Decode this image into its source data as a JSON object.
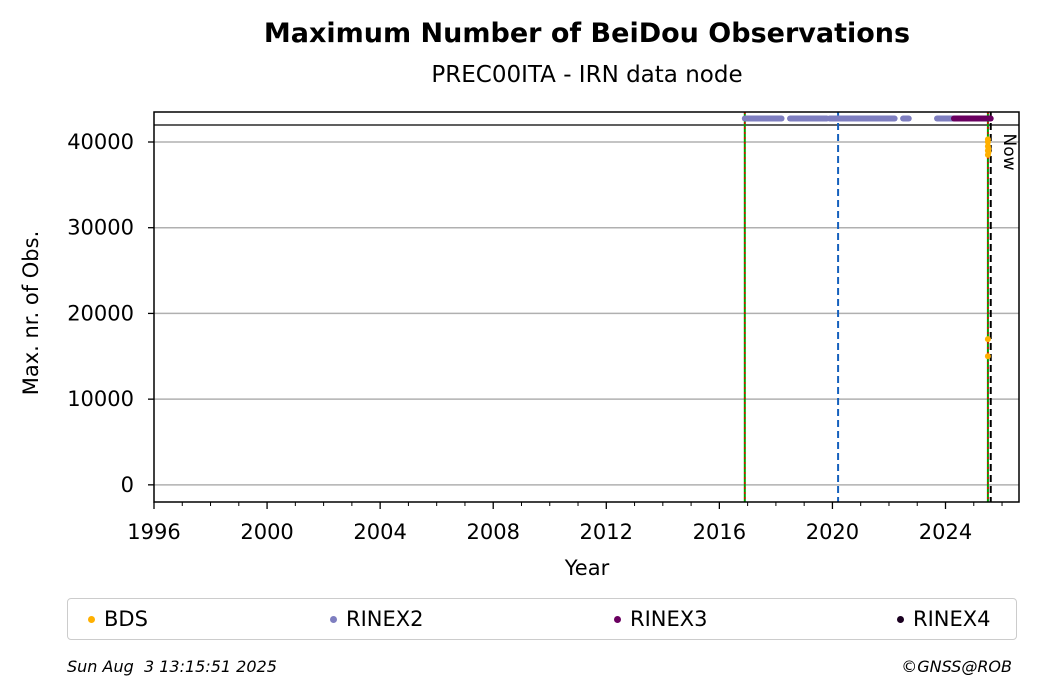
{
  "chart_data": {
    "type": "scatter",
    "title": "Maximum Number of BeiDou Observations",
    "subtitle": "PREC00ITA - IRN data node",
    "xlabel": "Year",
    "ylabel": "Max. nr. of Obs.",
    "xlim": [
      1996,
      2026.6
    ],
    "ylim": [
      -2000,
      43500
    ],
    "x_ticks": [
      "1996",
      "2000",
      "2004",
      "2008",
      "2012",
      "2016",
      "2020",
      "2024"
    ],
    "y_ticks": [
      "0",
      "10000",
      "20000",
      "30000",
      "40000"
    ],
    "grid": "horizontal",
    "legend_position": "bottom",
    "series": [
      {
        "name": "BDS",
        "color": "#ffb000",
        "points": [
          [
            2025.5,
            38500
          ],
          [
            2025.5,
            39000
          ],
          [
            2025.5,
            39500
          ],
          [
            2025.5,
            40000
          ],
          [
            2025.5,
            40300
          ],
          [
            2025.52,
            39200
          ],
          [
            2025.52,
            38800
          ],
          [
            2025.5,
            17000
          ],
          [
            2025.5,
            15000
          ]
        ]
      },
      {
        "name": "RINEX2",
        "color": "#7e7ec0",
        "segments": [
          [
            2016.9,
            2018.2
          ],
          [
            2018.5,
            2019.8
          ],
          [
            2019.9,
            2021.0
          ],
          [
            2021.0,
            2022.2
          ],
          [
            2022.5,
            2022.7
          ],
          [
            2023.7,
            2024.3
          ]
        ],
        "value_band": "top"
      },
      {
        "name": "RINEX3",
        "color": "#6a0060",
        "segments": [
          [
            2024.3,
            2025.6
          ]
        ],
        "value_band": "top"
      },
      {
        "name": "RINEX4",
        "color": "#1a0020",
        "segments": [],
        "value_band": "top"
      }
    ],
    "vertical_lines": [
      {
        "x": 2016.9,
        "style": "solid-green-red-dotted"
      },
      {
        "x": 2020.2,
        "style": "dashed-blue"
      },
      {
        "x": 2025.5,
        "style": "solid-green-red-dotted"
      },
      {
        "x": 2025.6,
        "style": "dashed-black"
      }
    ],
    "annotation": "Now"
  },
  "legend": [
    {
      "label": "BDS",
      "color": "#ffb000"
    },
    {
      "label": "RINEX2",
      "color": "#7e7ec0"
    },
    {
      "label": "RINEX3",
      "color": "#6a0060"
    },
    {
      "label": "RINEX4",
      "color": "#1a0020"
    }
  ],
  "footer": {
    "timestamp": "Sun Aug  3 13:15:51 2025",
    "credit": "©GNSS@ROB"
  }
}
